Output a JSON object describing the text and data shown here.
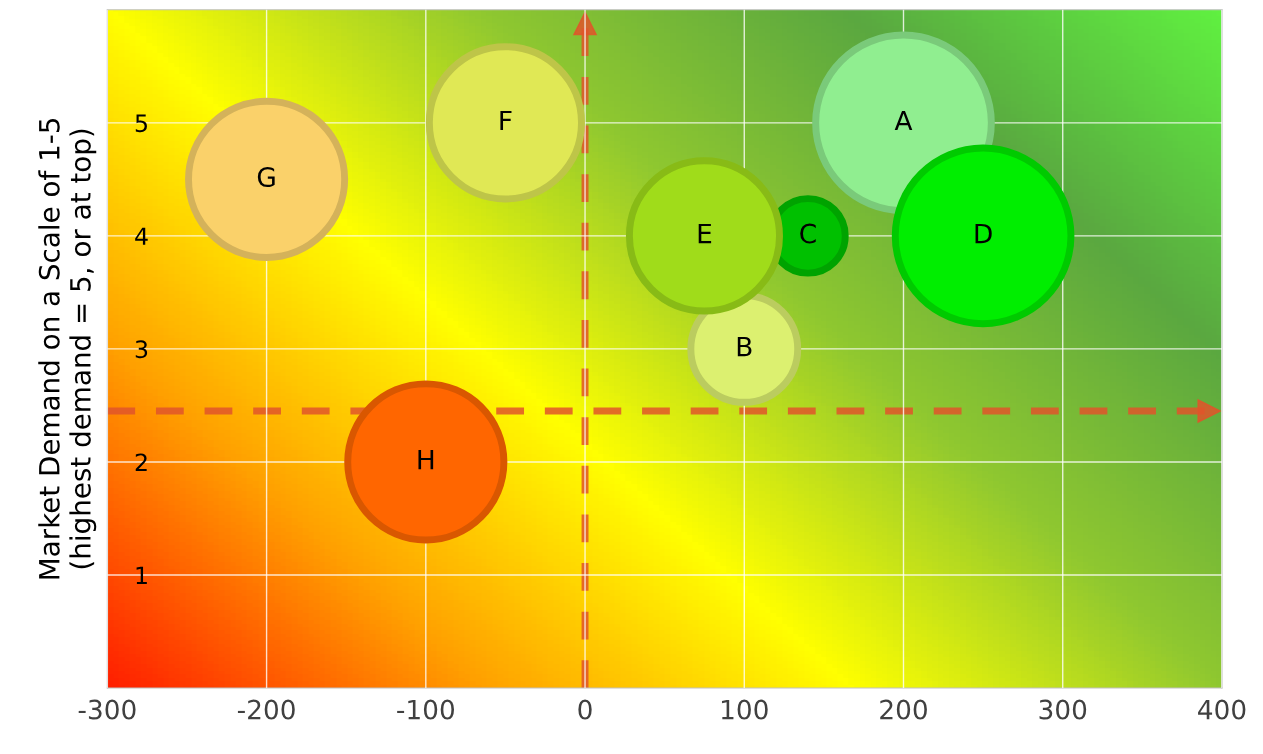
{
  "chart_data": {
    "type": "bubble",
    "ylabel": "Market Demand on a Scale of 1-5\n(highest demand = 5, or at top)",
    "xlim": [
      -300,
      400
    ],
    "xticks": [
      -300,
      -200,
      -100,
      0,
      100,
      200,
      300,
      400
    ],
    "ylim": [
      0,
      6
    ],
    "yticks": [
      1,
      2,
      3,
      4,
      5
    ],
    "grid": true,
    "series": [
      {
        "name": "A",
        "color": "#90ee90",
        "x": [
          200
        ],
        "values": [
          5
        ],
        "sizes": [
          1
        ]
      },
      {
        "name": "B",
        "color": "#dcf070",
        "x": [
          100
        ],
        "values": [
          3
        ],
        "sizes": [
          0.37
        ]
      },
      {
        "name": "C",
        "color": "#00c000",
        "x": [
          140
        ],
        "values": [
          4
        ],
        "sizes": [
          0.18
        ]
      },
      {
        "name": "D",
        "color": "#00ee00",
        "x": [
          250
        ],
        "values": [
          4
        ],
        "sizes": [
          1
        ]
      },
      {
        "name": "E",
        "color": "#a0dc1a",
        "x": [
          75
        ],
        "values": [
          4
        ],
        "sizes": [
          0.73
        ]
      },
      {
        "name": "F",
        "color": "#e0e855",
        "x": [
          -50
        ],
        "values": [
          5
        ],
        "sizes": [
          0.75
        ]
      },
      {
        "name": "G",
        "color": "#fad16a",
        "x": [
          -200
        ],
        "values": [
          4.5
        ],
        "sizes": [
          0.79
        ]
      },
      {
        "name": "H",
        "color": "#ff6600",
        "x": [
          -100
        ],
        "values": [
          2
        ],
        "sizes": [
          0.79
        ]
      }
    ],
    "ref_lines": [
      {
        "axis": "x",
        "value": 0,
        "color": "#e0552a",
        "line_style": "dashed"
      },
      {
        "axis": "y",
        "value": 2.45,
        "color": "#e0552a",
        "line_style": "dashed"
      }
    ]
  }
}
